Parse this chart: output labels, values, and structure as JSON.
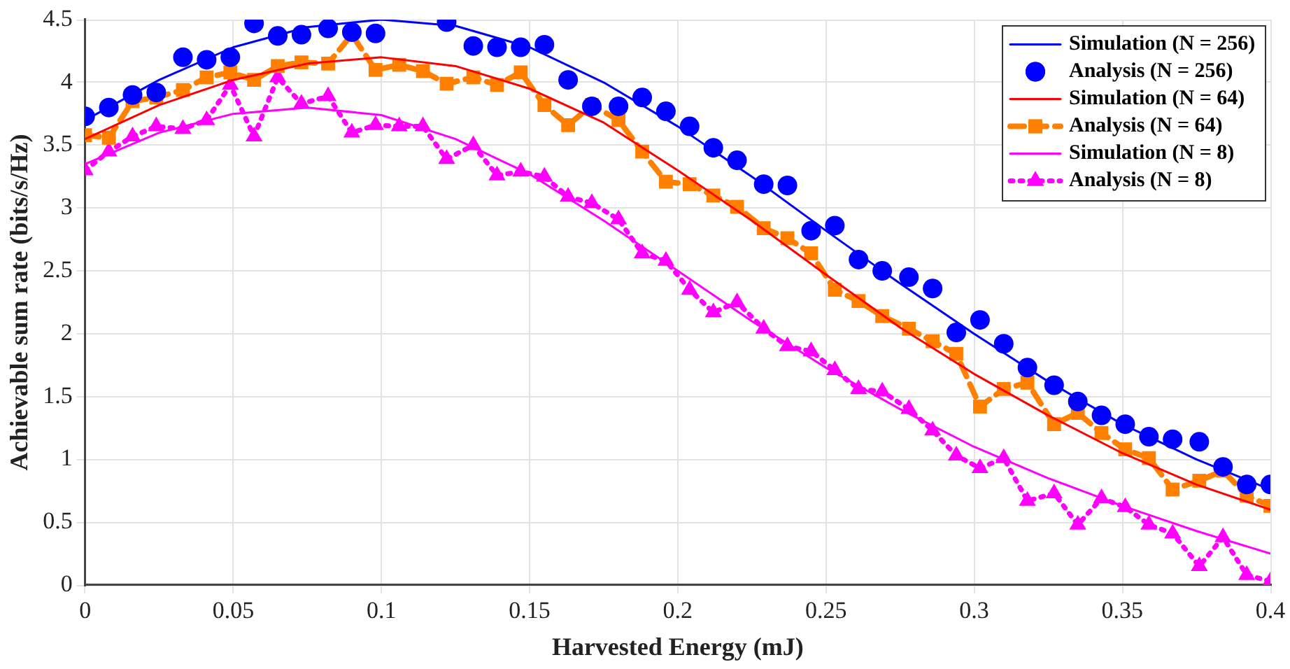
{
  "chart_data": {
    "type": "line",
    "xlabel": "Harvested Energy (mJ)",
    "ylabel": "Achievable sum rate (bits/s/Hz)",
    "xlim": [
      0,
      0.4
    ],
    "xticks": [
      0,
      0.05,
      0.1,
      0.15,
      0.2,
      0.25,
      0.3,
      0.35,
      0.4
    ],
    "ylim": [
      0,
      4.5
    ],
    "yticks": [
      0,
      0.5,
      1,
      1.5,
      2,
      2.5,
      3,
      3.5,
      4,
      4.5
    ],
    "grid": true,
    "legend": "top right",
    "series": [
      {
        "name": "Simulation (N = 256)",
        "type": "line",
        "color": "#0000ff",
        "marker": "none",
        "line_style": "solid",
        "x": [
          0,
          0.025,
          0.05,
          0.075,
          0.1,
          0.125,
          0.15,
          0.175,
          0.2,
          0.225,
          0.25,
          0.275,
          0.3,
          0.325,
          0.35,
          0.375,
          0.4
        ],
        "values": [
          3.7,
          4.02,
          4.28,
          4.44,
          4.5,
          4.45,
          4.28,
          4.0,
          3.65,
          3.25,
          2.82,
          2.4,
          2.0,
          1.62,
          1.28,
          1.0,
          0.76
        ]
      },
      {
        "name": "Analysis (N = 256)",
        "type": "scatter",
        "color": "#0000ff",
        "marker": "circle",
        "x": [
          0,
          0.008,
          0.016,
          0.024,
          0.033,
          0.041,
          0.049,
          0.057,
          0.065,
          0.073,
          0.082,
          0.09,
          0.098,
          0.106,
          0.114,
          0.122,
          0.131,
          0.139,
          0.147,
          0.155,
          0.163,
          0.171,
          0.18,
          0.188,
          0.196,
          0.204,
          0.212,
          0.22,
          0.229,
          0.237,
          0.245,
          0.253,
          0.261,
          0.269,
          0.278,
          0.286,
          0.294,
          0.302,
          0.31,
          0.318,
          0.327,
          0.335,
          0.343,
          0.351,
          0.359,
          0.367,
          0.376,
          0.384,
          0.392,
          0.4
        ],
        "values": [
          3.73,
          3.8,
          3.9,
          3.92,
          4.2,
          4.18,
          4.2,
          4.47,
          4.37,
          4.38,
          4.43,
          4.4,
          4.39,
          null,
          null,
          4.48,
          4.29,
          4.28,
          4.28,
          4.3,
          4.02,
          3.81,
          3.81,
          3.88,
          3.77,
          3.65,
          3.48,
          3.38,
          3.19,
          3.18,
          2.82,
          2.86,
          2.59,
          2.5,
          2.45,
          2.36,
          2.01,
          2.11,
          1.92,
          1.73,
          1.59,
          1.46,
          1.35,
          1.28,
          1.18,
          1.16,
          1.14,
          0.94,
          0.8,
          0.8
        ]
      },
      {
        "name": "Simulation (N = 64)",
        "type": "line",
        "color": "#ff0000",
        "marker": "none",
        "line_style": "solid",
        "x": [
          0,
          0.025,
          0.05,
          0.075,
          0.1,
          0.125,
          0.15,
          0.175,
          0.2,
          0.225,
          0.25,
          0.275,
          0.3,
          0.325,
          0.35,
          0.375,
          0.4
        ],
        "values": [
          3.55,
          3.82,
          4.02,
          4.15,
          4.2,
          4.13,
          3.95,
          3.68,
          3.3,
          2.9,
          2.47,
          2.05,
          1.68,
          1.35,
          1.05,
          0.8,
          0.6
        ]
      },
      {
        "name": "Analysis (N = 64)",
        "type": "line",
        "color": "#ff8000",
        "marker": "square",
        "line_style": "dashed",
        "x": [
          0,
          0.008,
          0.016,
          0.024,
          0.033,
          0.041,
          0.049,
          0.057,
          0.065,
          0.073,
          0.082,
          0.09,
          0.098,
          0.106,
          0.114,
          0.122,
          0.131,
          0.139,
          0.147,
          0.155,
          0.163,
          0.171,
          0.18,
          0.188,
          0.196,
          0.204,
          0.212,
          0.22,
          0.229,
          0.237,
          0.245,
          0.253,
          0.261,
          0.269,
          0.278,
          0.286,
          0.294,
          0.302,
          0.31,
          0.318,
          0.327,
          0.335,
          0.343,
          0.351,
          0.359,
          0.367,
          0.376,
          0.384,
          0.392,
          0.4
        ],
        "values": [
          3.58,
          3.56,
          3.85,
          3.88,
          3.94,
          4.04,
          4.08,
          4.02,
          4.13,
          4.16,
          4.15,
          4.38,
          4.1,
          4.14,
          4.09,
          3.99,
          4.04,
          3.98,
          4.08,
          3.82,
          3.66,
          3.82,
          3.7,
          3.45,
          3.21,
          3.19,
          3.1,
          3.01,
          2.84,
          2.76,
          2.64,
          2.35,
          2.26,
          2.14,
          2.04,
          1.94,
          1.84,
          1.42,
          1.56,
          1.61,
          1.28,
          1.37,
          1.21,
          1.08,
          1.01,
          0.76,
          0.83,
          0.91,
          0.71,
          0.63
        ]
      },
      {
        "name": "Simulation (N = 8)",
        "type": "line",
        "color": "#ff00ff",
        "marker": "none",
        "line_style": "solid",
        "x": [
          0,
          0.025,
          0.05,
          0.075,
          0.1,
          0.125,
          0.15,
          0.175,
          0.2,
          0.225,
          0.25,
          0.275,
          0.3,
          0.325,
          0.35,
          0.375,
          0.4
        ],
        "values": [
          3.35,
          3.6,
          3.75,
          3.8,
          3.74,
          3.55,
          3.27,
          2.9,
          2.5,
          2.1,
          1.73,
          1.4,
          1.1,
          0.85,
          0.63,
          0.43,
          0.25
        ]
      },
      {
        "name": "Analysis (N = 8)",
        "type": "line",
        "color": "#ff00ff",
        "marker": "triangle",
        "line_style": "dotted",
        "x": [
          0,
          0.008,
          0.016,
          0.024,
          0.033,
          0.041,
          0.049,
          0.057,
          0.065,
          0.073,
          0.082,
          0.09,
          0.098,
          0.106,
          0.114,
          0.122,
          0.131,
          0.139,
          0.147,
          0.155,
          0.163,
          0.171,
          0.18,
          0.188,
          0.196,
          0.204,
          0.212,
          0.22,
          0.229,
          0.237,
          0.245,
          0.253,
          0.261,
          0.269,
          0.278,
          0.286,
          0.294,
          0.302,
          0.31,
          0.318,
          0.327,
          0.335,
          0.343,
          0.351,
          0.359,
          0.367,
          0.376,
          0.384,
          0.392,
          0.4
        ],
        "values": [
          3.3,
          3.45,
          3.57,
          3.65,
          3.63,
          3.7,
          3.98,
          3.57,
          4.04,
          3.83,
          3.89,
          3.6,
          3.66,
          3.65,
          3.65,
          3.39,
          3.5,
          3.26,
          3.29,
          3.25,
          3.09,
          3.04,
          2.91,
          2.64,
          2.58,
          2.35,
          2.17,
          2.25,
          2.04,
          1.9,
          1.86,
          1.71,
          1.56,
          1.54,
          1.4,
          1.23,
          1.03,
          0.93,
          1.01,
          0.67,
          0.73,
          0.48,
          0.69,
          0.62,
          0.48,
          0.41,
          0.15,
          0.38,
          0.08,
          0.03
        ]
      }
    ]
  }
}
